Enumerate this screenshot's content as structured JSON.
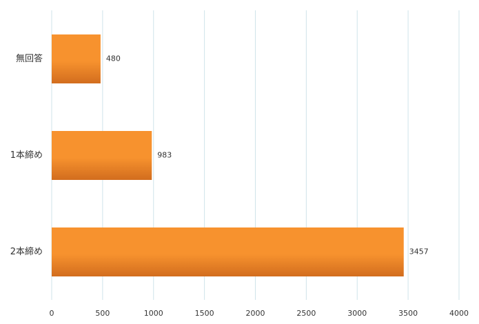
{
  "chart_data": {
    "type": "barh",
    "categories": [
      "無回答",
      "1本締め",
      "2本締め"
    ],
    "values": [
      480,
      983,
      3457
    ],
    "color": "#f7922e",
    "xlim": [
      0,
      4000
    ],
    "xticks": [
      0,
      500,
      1000,
      1500,
      2000,
      2500,
      3000,
      3500,
      4000
    ],
    "grid": true
  }
}
